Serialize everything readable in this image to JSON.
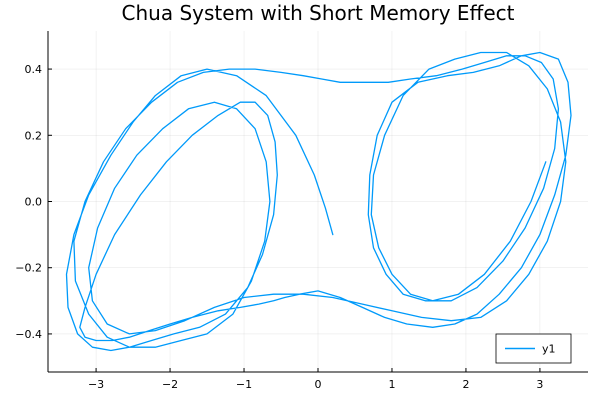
{
  "chart_data": {
    "type": "line",
    "title": "Chua System with Short Memory Effect",
    "xlabel": "",
    "ylabel": "",
    "xlim": [
      -3.65,
      3.65
    ],
    "ylim": [
      -0.515,
      0.515
    ],
    "xticks": [
      -3,
      -2,
      -1,
      0,
      1,
      2,
      3
    ],
    "yticks": [
      -0.4,
      -0.2,
      0.0,
      0.2,
      0.4
    ],
    "xtick_labels": [
      "−3",
      "−2",
      "−1",
      "0",
      "1",
      "2",
      "3"
    ],
    "ytick_labels": [
      "−0.4",
      "−0.2",
      "0.0",
      "0.2",
      "0.4"
    ],
    "grid": true,
    "legend_position": "bottom-right",
    "series": [
      {
        "name": "y1",
        "color": "#009AFA",
        "x": [
          0.2,
          0.1,
          -0.05,
          -0.3,
          -0.7,
          -1.1,
          -1.5,
          -1.85,
          -2.2,
          -2.5,
          -2.8,
          -3.1,
          -3.3,
          -3.4,
          -3.38,
          -3.25,
          -3.05,
          -2.8,
          -2.55,
          -2.25,
          -1.95,
          -1.6,
          -1.25,
          -0.95,
          -0.75,
          -0.6,
          -0.55,
          -0.58,
          -0.68,
          -0.85,
          -1.05,
          -1.35,
          -1.7,
          -2.05,
          -2.4,
          -2.75,
          -3.0,
          -3.15,
          -3.22,
          -3.15,
          -3.0,
          -2.78,
          -2.55,
          -2.28,
          -2.0,
          -1.7,
          -1.35,
          -1.05,
          -0.8,
          -0.6,
          -0.45,
          -0.25,
          0.0,
          0.3,
          0.6,
          0.9,
          1.2,
          1.55,
          1.85,
          2.15,
          2.45,
          2.75,
          3.0,
          3.2,
          3.35,
          3.42,
          3.38,
          3.25,
          3.0,
          2.75,
          2.45,
          2.1,
          1.75,
          1.35,
          1.0,
          0.8,
          0.7,
          0.68,
          0.75,
          0.92,
          1.15,
          1.45,
          1.8,
          2.15,
          2.5,
          2.8,
          3.05,
          3.2,
          3.25,
          3.18,
          3.02,
          2.8,
          2.55,
          2.25,
          1.95,
          1.6,
          1.25,
          0.95,
          0.6,
          0.3,
          0.05,
          -0.2,
          -0.5,
          -0.85,
          -1.2,
          -1.55,
          -1.9,
          -2.25,
          -2.6,
          -2.9,
          -3.15,
          -3.3,
          -3.28,
          -3.1,
          -2.85,
          -2.55,
          -2.2,
          -1.85,
          -1.5,
          -1.15,
          -0.9,
          -0.72,
          -0.65,
          -0.7,
          -0.85,
          -1.1,
          -1.4,
          -1.75,
          -2.1,
          -2.45,
          -2.75,
          -2.98,
          -3.1,
          -3.05,
          -2.85,
          -2.55,
          -2.2,
          -1.8,
          -1.4,
          -1.0,
          -0.6,
          -0.2,
          0.2,
          0.6,
          1.0,
          1.4,
          1.8,
          2.2,
          2.55,
          2.85,
          3.1,
          3.28,
          3.35,
          3.28,
          3.1,
          2.85,
          2.55,
          2.2,
          1.85,
          1.5,
          1.15,
          0.9,
          0.75,
          0.72,
          0.82,
          1.0,
          1.25,
          1.55,
          1.9,
          2.25,
          2.6,
          2.88,
          3.08
        ],
        "y": [
          -0.1,
          -0.02,
          0.08,
          0.2,
          0.32,
          0.38,
          0.4,
          0.38,
          0.32,
          0.24,
          0.14,
          0.02,
          -0.1,
          -0.22,
          -0.32,
          -0.4,
          -0.44,
          -0.45,
          -0.44,
          -0.42,
          -0.4,
          -0.38,
          -0.34,
          -0.26,
          -0.16,
          -0.04,
          0.08,
          0.18,
          0.26,
          0.3,
          0.3,
          0.26,
          0.2,
          0.12,
          0.02,
          -0.1,
          -0.22,
          -0.32,
          -0.38,
          -0.41,
          -0.42,
          -0.42,
          -0.41,
          -0.39,
          -0.37,
          -0.35,
          -0.33,
          -0.32,
          -0.31,
          -0.3,
          -0.29,
          -0.28,
          -0.27,
          -0.29,
          -0.32,
          -0.35,
          -0.37,
          -0.38,
          -0.37,
          -0.34,
          -0.28,
          -0.2,
          -0.1,
          0.02,
          0.14,
          0.26,
          0.36,
          0.43,
          0.45,
          0.44,
          0.41,
          0.39,
          0.38,
          0.36,
          0.3,
          0.2,
          0.08,
          -0.04,
          -0.14,
          -0.22,
          -0.28,
          -0.3,
          -0.3,
          -0.26,
          -0.18,
          -0.08,
          0.04,
          0.16,
          0.28,
          0.37,
          0.42,
          0.44,
          0.44,
          0.42,
          0.4,
          0.38,
          0.37,
          0.36,
          0.36,
          0.36,
          0.37,
          0.38,
          0.39,
          0.4,
          0.4,
          0.39,
          0.36,
          0.3,
          0.22,
          0.12,
          0.0,
          -0.12,
          -0.24,
          -0.34,
          -0.41,
          -0.44,
          -0.44,
          -0.42,
          -0.4,
          -0.34,
          -0.24,
          -0.12,
          0.0,
          0.12,
          0.22,
          0.28,
          0.3,
          0.28,
          0.22,
          0.14,
          0.04,
          -0.08,
          -0.2,
          -0.3,
          -0.37,
          -0.4,
          -0.39,
          -0.36,
          -0.32,
          -0.29,
          -0.28,
          -0.28,
          -0.29,
          -0.31,
          -0.33,
          -0.35,
          -0.36,
          -0.35,
          -0.3,
          -0.22,
          -0.12,
          0.0,
          0.12,
          0.24,
          0.34,
          0.41,
          0.45,
          0.45,
          0.43,
          0.4,
          0.32,
          0.2,
          0.08,
          -0.04,
          -0.14,
          -0.22,
          -0.28,
          -0.3,
          -0.28,
          -0.22,
          -0.12,
          0.0,
          0.12
        ]
      }
    ]
  }
}
